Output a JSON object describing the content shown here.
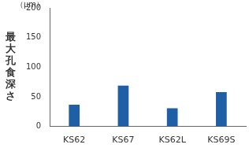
{
  "chart_data": {
    "type": "bar",
    "ylabel": "最大孔食深さ",
    "yunit": "（μm）",
    "categories": [
      "KS62",
      "KS67",
      "KS62L",
      "KS69S"
    ],
    "values": [
      37,
      69,
      31,
      58
    ],
    "color": "#1f5fa5",
    "ylim": [
      0,
      200
    ],
    "yticks": [
      0,
      50,
      100,
      150,
      200
    ],
    "grid": false
  }
}
